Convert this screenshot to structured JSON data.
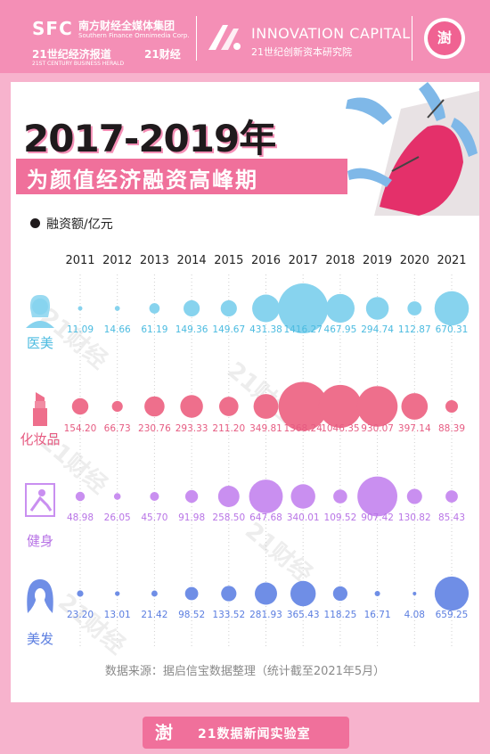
{
  "header": {
    "sfc": "SFC",
    "sfc_cn": "南方财经全媒体集团",
    "sfc_en": "Southern Finance Omnimedia Corp.",
    "herald_cn": "21世纪经济报道",
    "herald_en": "21ST CENTURY BUSINESS HERALD",
    "caijing": "21财经",
    "ic_name": "INNOVATION CAPITAL",
    "ic_sub": "21世纪创新资本研究院",
    "brand_char": "澍"
  },
  "title": {
    "line1": "2017-2019年",
    "line2": "为颜值经济融资高峰期"
  },
  "legend": {
    "label": "融资额/亿元"
  },
  "watermark": "21财经",
  "colors": {
    "医美": "#87d3ee",
    "化妆品": "#ee6f8c",
    "健身": "#c98ff0",
    "美发": "#6f8ee6",
    "value_医美": "#4bbbe0",
    "value_化妆品": "#e65c82",
    "value_健身": "#b874e6",
    "value_美发": "#5b7ee0"
  },
  "icons": [
    "woman-icon",
    "lipstick-icon",
    "fitness-icon",
    "hair-icon"
  ],
  "chart_data": {
    "type": "bubble",
    "years": [
      "2011",
      "2012",
      "2013",
      "2014",
      "2015",
      "2016",
      "2017",
      "2018",
      "2019",
      "2020",
      "2021"
    ],
    "series": [
      {
        "name": "医美",
        "values": [
          "11.09",
          "14.66",
          "61.19",
          "149.36",
          "149.67",
          "431.38",
          "1416.27",
          "467.95",
          "294.74",
          "112.87",
          "670.31"
        ]
      },
      {
        "name": "化妆品",
        "values": [
          "154.20",
          "66.73",
          "230.76",
          "293.33",
          "211.20",
          "349.81",
          "1368.24",
          "1046.35",
          "930.07",
          "397.14",
          "88.39"
        ]
      },
      {
        "name": "健身",
        "values": [
          "48.98",
          "26.05",
          "45.70",
          "91.98",
          "258.50",
          "647.68",
          "340.01",
          "109.52",
          "907.42",
          "130.82",
          "85.43"
        ]
      },
      {
        "name": "美发",
        "values": [
          "23.20",
          "13.01",
          "21.42",
          "98.52",
          "133.52",
          "281.93",
          "365.43",
          "118.25",
          "16.71",
          "4.08",
          "659.25"
        ]
      }
    ]
  },
  "source": "数据来源：据启信宝数据整理（统计截至2021年5月）",
  "footer": {
    "logo": "澍",
    "text": "21数据新闻实验室"
  }
}
